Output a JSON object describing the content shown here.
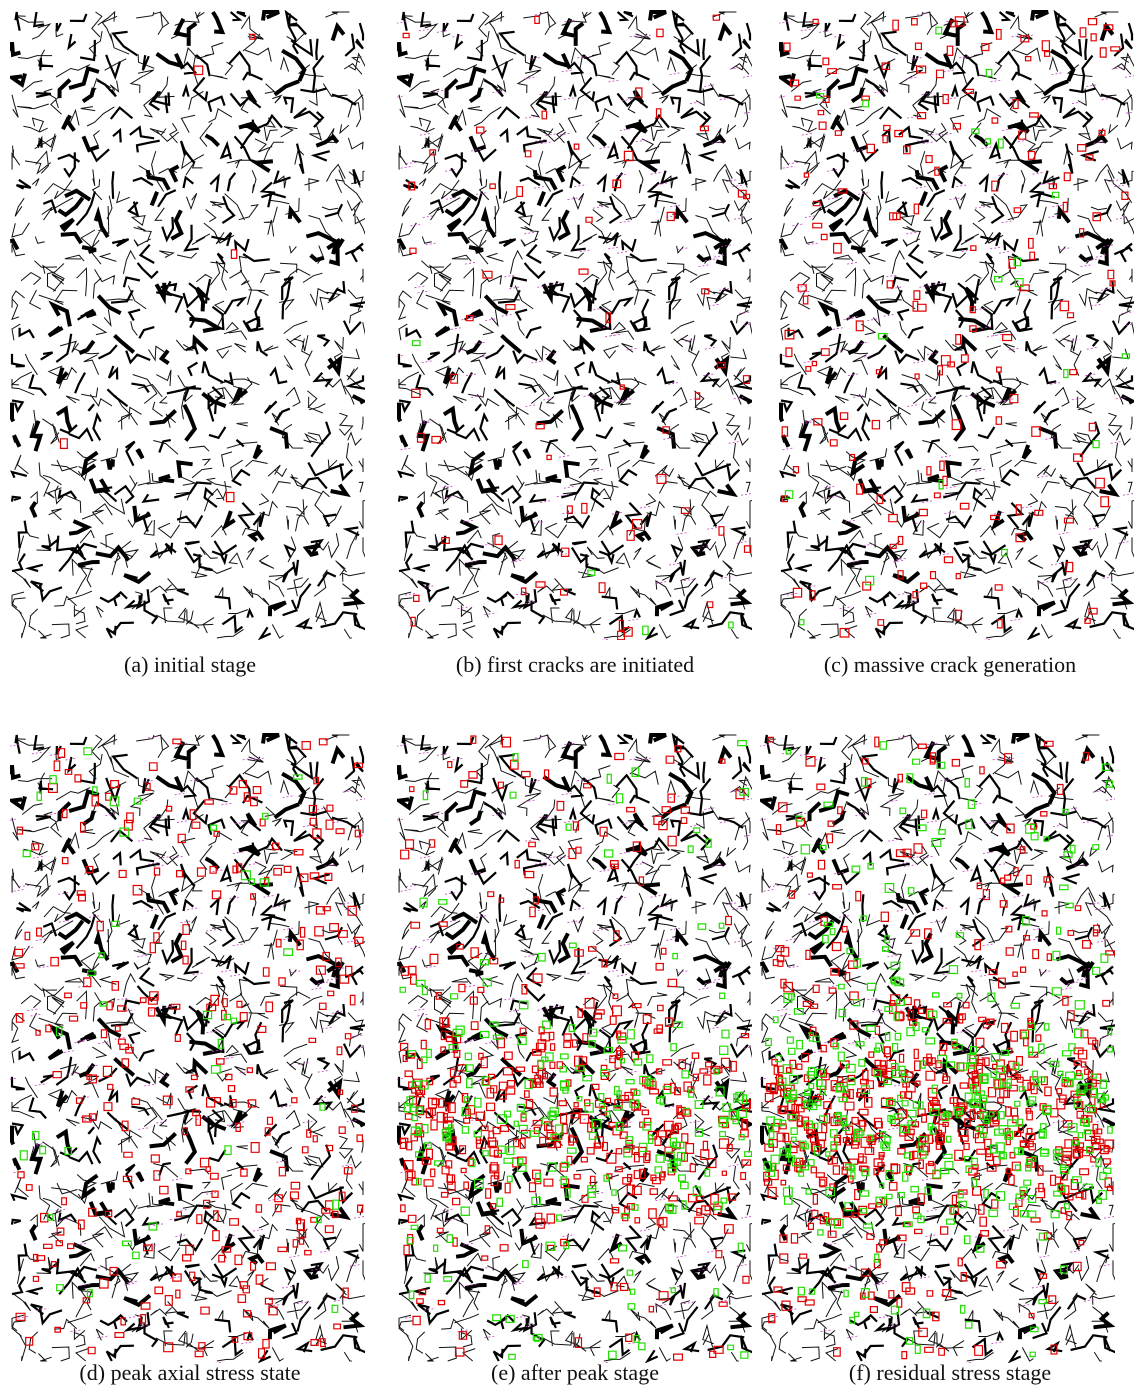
{
  "panels": [
    {
      "caption": "(a) initial stage"
    },
    {
      "caption": "(b) first cracks are initiated"
    },
    {
      "caption": "(c) massive crack generation"
    },
    {
      "caption": "(d) peak axial stress state"
    },
    {
      "caption": "(e) after peak stage"
    },
    {
      "caption": "(f) residual stress stage"
    }
  ]
}
